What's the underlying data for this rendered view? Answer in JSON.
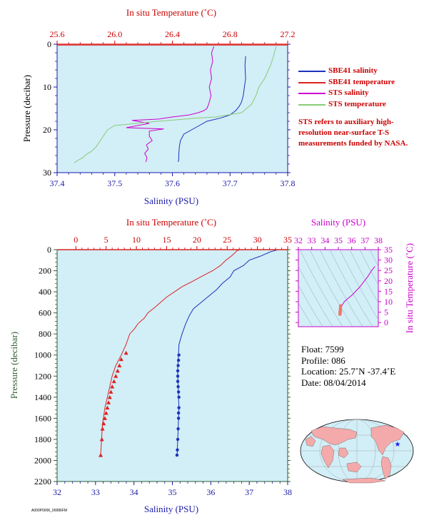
{
  "colors": {
    "panel_bg": "#d2eef7",
    "red": "#dd2222",
    "blue": "#1a33bb",
    "magenta": "#cc00cc",
    "green": "#88cc77",
    "axis_green": "#2f5f2f"
  },
  "top_panel": {
    "top_axis_label": "In situ Temperature (˚C)",
    "bottom_axis_label": "Salinity (PSU)",
    "left_axis_label": "Pressure (decibar)",
    "legend": [
      {
        "label": "SBE41 salinity",
        "color": "#1a33bb"
      },
      {
        "label": "SBE41 temperature",
        "color": "#dd2222"
      },
      {
        "label": "STS salinity",
        "color": "#cc00cc"
      },
      {
        "label": "STS temperature",
        "color": "#88cc77"
      }
    ],
    "note": "STS refers to auxiliary high-resolution near-surface T-S measurements funded by NASA."
  },
  "bottom_panel": {
    "top_axis_label": "In situ Temperature (˚C)",
    "bottom_axis_label": "Salinity (PSU)",
    "left_axis_label": "Pressure (decibar)"
  },
  "ts_panel": {
    "top_axis_label": "Salinity (PSU)",
    "right_axis_label": "In situ Temperature (˚C)"
  },
  "float_info": {
    "float": "Float:  7599",
    "profile": "Profile:  086",
    "location": "Location:  25.7˚N  -37.4˚E",
    "date": "Date:  08/04/2014"
  },
  "footer_code": "A000P0006_00086FM",
  "chart_data": [
    {
      "type": "line",
      "title": "",
      "x_bottom": {
        "label": "Salinity (PSU)",
        "range": [
          37.4,
          37.8
        ],
        "ticks": [
          "37.4",
          "37.5",
          "37.6",
          "37.7",
          "37.8"
        ]
      },
      "x_top": {
        "label": "In situ Temperature (˚C)",
        "range": [
          25.6,
          27.2
        ],
        "ticks": [
          "25.6",
          "26.0",
          "26.4",
          "26.8",
          "27.2"
        ]
      },
      "y": {
        "label": "Pressure (decibar)",
        "range": [
          0,
          30
        ],
        "inverted": true,
        "ticks": [
          "0",
          "10",
          "20",
          "30"
        ]
      },
      "series": [
        {
          "name": "SBE41 salinity",
          "axis": "x_bottom",
          "color": "#1a33bb",
          "x": [
            37.727,
            37.726,
            37.727,
            37.725,
            37.723,
            37.72,
            37.716,
            37.71,
            37.7,
            37.685,
            37.66,
            37.64,
            37.62,
            37.614,
            37.612,
            37.611,
            37.611,
            37.61
          ],
          "y": [
            2.8,
            5,
            8,
            10,
            12,
            13.5,
            14.5,
            15.5,
            16.5,
            17.2,
            18,
            19.5,
            21,
            22.5,
            24,
            26,
            27,
            27.5
          ]
        },
        {
          "name": "SBE41 temperature",
          "axis": "x_top",
          "color": "#dd2222",
          "x": [
            25.6,
            27.2
          ],
          "y": [
            0.2,
            0.2
          ]
        },
        {
          "name": "STS salinity",
          "axis": "x_bottom",
          "color": "#cc00cc",
          "x": [
            37.672,
            37.668,
            37.67,
            37.666,
            37.668,
            37.664,
            37.667,
            37.665,
            37.663,
            37.66,
            37.655,
            37.645,
            37.63,
            37.6,
            37.575,
            37.53,
            37.56,
            37.52,
            37.585,
            37.56,
            37.56,
            37.565,
            37.555,
            37.558,
            37.552,
            37.556,
            37.554
          ],
          "y": [
            0.5,
            2,
            4,
            6,
            8,
            10,
            12,
            13,
            14,
            15,
            15.5,
            16,
            16.5,
            17,
            17.5,
            17.8,
            18.5,
            19.5,
            19.8,
            20.3,
            21.5,
            22.5,
            23.5,
            24.5,
            25.5,
            26.5,
            27.5
          ]
        },
        {
          "name": "STS temperature",
          "axis": "x_top",
          "color": "#88cc77",
          "x": [
            27.12,
            27.1,
            27.08,
            27.06,
            27.04,
            27.0,
            26.98,
            26.95,
            26.88,
            26.7,
            26.55,
            26.45,
            26.3,
            26.0,
            25.95,
            25.93,
            25.9,
            25.87,
            25.84,
            25.8,
            25.78,
            25.74,
            25.72
          ],
          "y": [
            0.5,
            3,
            5,
            6.5,
            8,
            10,
            12,
            14,
            16,
            17,
            17.3,
            17.6,
            18,
            19,
            20,
            21,
            22.5,
            24,
            25,
            25.8,
            26.5,
            27.2,
            27.7
          ]
        }
      ]
    },
    {
      "type": "line",
      "title": "",
      "x_bottom": {
        "label": "Salinity (PSU)",
        "range": [
          32,
          38
        ],
        "ticks": [
          "32",
          "33",
          "34",
          "35",
          "36",
          "37",
          "38"
        ]
      },
      "x_top": {
        "label": "In situ Temperature (˚C)",
        "range": [
          -3.1,
          35
        ],
        "ticks": [
          "0",
          "5",
          "10",
          "15",
          "20",
          "25",
          "30",
          "35"
        ]
      },
      "y": {
        "label": "Pressure (decibar)",
        "range": [
          0,
          2200
        ],
        "inverted": true,
        "ticks": [
          "0",
          "200",
          "400",
          "600",
          "800",
          "1000",
          "1200",
          "1400",
          "1600",
          "1800",
          "2000",
          "2200"
        ]
      },
      "series": [
        {
          "name": "Temperature",
          "axis": "x_top",
          "color": "#dd2222",
          "x": [
            27.1,
            26.6,
            26.3,
            25.7,
            24.8,
            23.9,
            22.6,
            20.9,
            19.3,
            17.6,
            16.3,
            15.0,
            14.0,
            13.0,
            11.9,
            11.3,
            10.3,
            9.7,
            8.9,
            8.3,
            7.5,
            6.6,
            6.0,
            5.6,
            5.2,
            4.8,
            4.4,
            4.1
          ],
          "y": [
            0,
            10,
            30,
            60,
            100,
            150,
            200,
            250,
            300,
            350,
            400,
            450,
            500,
            550,
            600,
            650,
            700,
            750,
            800,
            900,
            1000,
            1100,
            1200,
            1300,
            1400,
            1500,
            1650,
            1950
          ]
        },
        {
          "name": "Salinity",
          "axis": "x_bottom",
          "color": "#1a33bb",
          "x": [
            37.75,
            37.55,
            37.3,
            37.0,
            36.85,
            36.6,
            36.5,
            36.3,
            36.15,
            35.95,
            35.75,
            35.55,
            35.45,
            35.35,
            35.25,
            35.17,
            35.16,
            35.14,
            35.14,
            35.15,
            35.16,
            35.17,
            35.16,
            35.15,
            35.14,
            35.12
          ],
          "y": [
            0,
            20,
            60,
            100,
            150,
            200,
            260,
            320,
            380,
            440,
            500,
            560,
            620,
            700,
            800,
            900,
            1000,
            1100,
            1200,
            1300,
            1400,
            1500,
            1600,
            1700,
            1800,
            1950
          ]
        },
        {
          "name": "Temperature samples",
          "axis": "x_top",
          "color": "#dd2222",
          "marker": "triangle",
          "x": [
            8.3,
            7.5,
            7.2,
            6.9,
            6.6,
            6.3,
            6.0,
            5.8,
            5.6,
            5.4,
            5.2,
            5.0,
            4.8,
            4.6,
            4.4,
            4.3,
            4.1
          ],
          "y": [
            980,
            1040,
            1100,
            1150,
            1200,
            1250,
            1300,
            1350,
            1400,
            1450,
            1500,
            1550,
            1600,
            1650,
            1700,
            1800,
            1950
          ]
        },
        {
          "name": "Salinity samples",
          "axis": "x_bottom",
          "color": "#1a33bb",
          "marker": "circle",
          "x": [
            35.17,
            35.16,
            35.15,
            35.14,
            35.14,
            35.14,
            35.15,
            35.16,
            35.17,
            35.17,
            35.16,
            35.16,
            35.15,
            35.14,
            35.13,
            35.12
          ],
          "y": [
            1000,
            1050,
            1100,
            1150,
            1200,
            1250,
            1300,
            1350,
            1400,
            1500,
            1550,
            1600,
            1700,
            1800,
            1900,
            1950
          ]
        }
      ]
    },
    {
      "type": "scatter",
      "title": "",
      "x_top": {
        "label": "Salinity (PSU)",
        "range": [
          32,
          38
        ],
        "ticks": [
          "32",
          "33",
          "34",
          "35",
          "36",
          "37",
          "38"
        ]
      },
      "y_right": {
        "label": "In situ Temperature (˚C)",
        "range": [
          -2,
          35
        ],
        "ticks": [
          "0",
          "5",
          "10",
          "15",
          "20",
          "25",
          "30",
          "35"
        ]
      },
      "series": [
        {
          "name": "T-S",
          "color": "#cc00cc",
          "x": [
            37.75,
            37.5,
            37.2,
            36.9,
            36.6,
            36.3,
            36.0,
            35.7,
            35.45,
            35.3,
            35.2,
            35.15
          ],
          "y": [
            27,
            25,
            22,
            19.5,
            17,
            15,
            13,
            11.5,
            10,
            8.5,
            7,
            5
          ]
        },
        {
          "name": "deep",
          "color": "#ee7766",
          "x": [
            35.17,
            35.16,
            35.15,
            35.14,
            35.14,
            35.13,
            35.12
          ],
          "y": [
            8,
            7,
            6,
            5.5,
            5,
            4.5,
            4
          ]
        }
      ]
    }
  ]
}
